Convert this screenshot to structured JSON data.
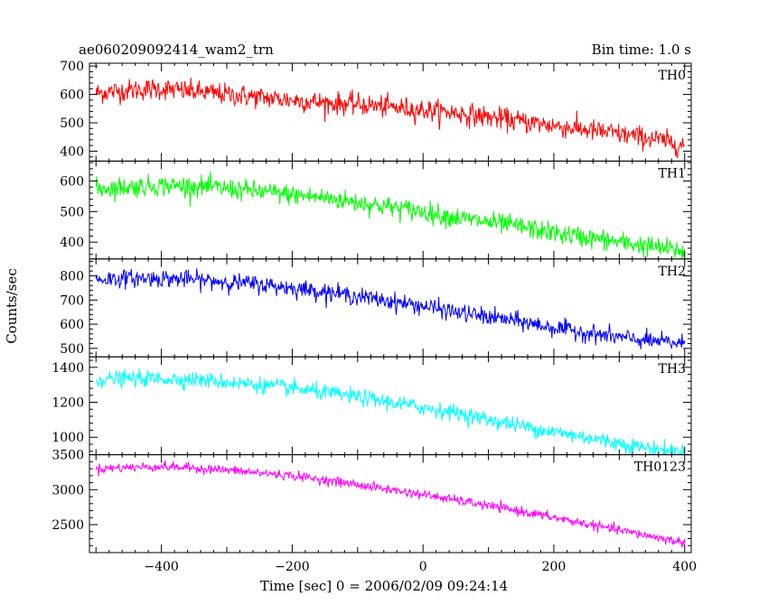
{
  "chart_data": {
    "type": "line",
    "title": "ae060209092414_wam2_trn",
    "bin_time": "Bin time: 1.0 s",
    "xlabel": "Time [sec] 0 = 2006/02/09 09:24:14",
    "ylabel": "Counts/sec",
    "xlim": [
      -510,
      410
    ],
    "xticks": [
      -400,
      -200,
      0,
      200,
      400
    ],
    "panels": [
      {
        "name": "TH0",
        "color": "#ff0000",
        "ylim": [
          365,
          710
        ],
        "yticks": [
          400,
          500,
          600,
          700
        ],
        "x": [
          -500,
          -450,
          -400,
          -350,
          -300,
          -250,
          -200,
          -150,
          -100,
          -50,
          0,
          50,
          100,
          150,
          200,
          250,
          300,
          350,
          400
        ],
        "values": [
          605,
          615,
          620,
          610,
          600,
          590,
          580,
          570,
          565,
          555,
          545,
          535,
          520,
          505,
          490,
          475,
          460,
          445,
          420
        ],
        "noise": 32
      },
      {
        "name": "TH1",
        "color": "#00ff00",
        "ylim": [
          345,
          665
        ],
        "yticks": [
          400,
          500,
          600
        ],
        "x": [
          -500,
          -450,
          -400,
          -350,
          -300,
          -250,
          -200,
          -150,
          -100,
          -50,
          0,
          50,
          100,
          150,
          200,
          250,
          300,
          350,
          400
        ],
        "values": [
          575,
          580,
          585,
          583,
          575,
          565,
          555,
          545,
          530,
          515,
          500,
          480,
          465,
          450,
          430,
          415,
          400,
          385,
          370
        ],
        "noise": 28
      },
      {
        "name": "TH2",
        "color": "#0000ff",
        "ylim": [
          465,
          870
        ],
        "yticks": [
          500,
          600,
          700,
          800
        ],
        "x": [
          -500,
          -450,
          -400,
          -350,
          -300,
          -250,
          -200,
          -150,
          -100,
          -50,
          0,
          50,
          100,
          150,
          200,
          250,
          300,
          350,
          400
        ],
        "values": [
          785,
          790,
          790,
          785,
          775,
          765,
          750,
          735,
          715,
          695,
          675,
          650,
          630,
          610,
          585,
          565,
          545,
          530,
          520
        ],
        "noise": 30
      },
      {
        "name": "TH3",
        "color": "#00ffff",
        "ylim": [
          900,
          1460
        ],
        "yticks": [
          1000,
          1200,
          1400
        ],
        "x": [
          -500,
          -450,
          -400,
          -350,
          -300,
          -250,
          -200,
          -150,
          -100,
          -50,
          0,
          50,
          100,
          150,
          200,
          250,
          300,
          350,
          400
        ],
        "values": [
          1330,
          1335,
          1335,
          1330,
          1315,
          1300,
          1280,
          1255,
          1230,
          1200,
          1170,
          1140,
          1100,
          1065,
          1030,
          1000,
          965,
          935,
          915
        ],
        "noise": 38
      },
      {
        "name": "TH0123",
        "color": "#ff00ff",
        "ylim": [
          2100,
          3500
        ],
        "yticks": [
          2500,
          3000,
          3500
        ],
        "x": [
          -500,
          -450,
          -400,
          -350,
          -300,
          -250,
          -200,
          -150,
          -100,
          -50,
          0,
          50,
          100,
          150,
          200,
          250,
          300,
          350,
          400
        ],
        "values": [
          3300,
          3320,
          3330,
          3310,
          3280,
          3240,
          3200,
          3140,
          3070,
          3000,
          2930,
          2850,
          2770,
          2690,
          2600,
          2510,
          2420,
          2330,
          2240
        ],
        "noise": 55
      }
    ]
  }
}
